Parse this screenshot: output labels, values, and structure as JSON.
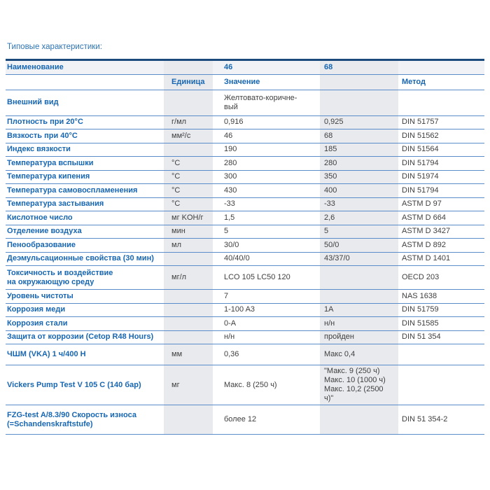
{
  "page": {
    "title": "Типовые характеристики:"
  },
  "colors": {
    "label_blue": "#1766b2",
    "title_blue": "#2d74b5",
    "top_border_navy": "#1b4a7d",
    "row_separator_blue": "#5a8cc9",
    "column_stripe_gray": "#e8eaee",
    "header_row_bg": "#f0f2f5",
    "value_text": "#3f3f3f"
  },
  "table": {
    "header_row1": {
      "name": "Наименование",
      "grade_a": "46",
      "grade_b": "68"
    },
    "header_row2": {
      "unit": "Единица",
      "value": "Значение",
      "method": "Метод"
    },
    "rows": [
      {
        "name": "Внешний вид",
        "unit": "",
        "v46": "Желтовато-коричне-\nвый",
        "v68": "",
        "method": ""
      },
      {
        "name": "Плотность при 20°C",
        "unit": "г/мл",
        "v46": "0,916",
        "v68": "0,925",
        "method": "DIN 51757"
      },
      {
        "name": "Вязкость при 40°C",
        "unit": "мм²/с",
        "v46": "46",
        "v68": "68",
        "method": "DIN 51562"
      },
      {
        "name": "Индекс вязкости",
        "unit": "",
        "v46": "190",
        "v68": "185",
        "method": "DIN 51564"
      },
      {
        "name": "Температура вспышки",
        "unit": "°C",
        "v46": "280",
        "v68": "280",
        "method": "DIN 51794"
      },
      {
        "name": "Температура кипения",
        "unit": "°C",
        "v46": "300",
        "v68": "350",
        "method": "DIN 51974"
      },
      {
        "name": "Температура самовоспламенения",
        "unit": "°C",
        "v46": "430",
        "v68": "400",
        "method": "DIN 51794"
      },
      {
        "name": "Температура застывания",
        "unit": "°C",
        "v46": "-33",
        "v68": "-33",
        "method": "ASTM D 97"
      },
      {
        "name": "Кислотное число",
        "unit": "мг KOH/г",
        "v46": "1,5",
        "v68": "2,6",
        "method": "ASTM D 664"
      },
      {
        "name": "Отделение воздуха",
        "unit": "мин",
        "v46": "5",
        "v68": "5",
        "method": "ASTM D 3427"
      },
      {
        "name": "Пенообразование",
        "unit": "мл",
        "v46": "30/0",
        "v68": "50/0",
        "method": "ASTM D 892"
      },
      {
        "name": "Деэмульсационные свойства (30 мин)",
        "unit": "",
        "v46": "40/40/0",
        "v68": "43/37/0",
        "method": "ASTM D 1401"
      },
      {
        "name": "Токсичность и воздействие\nна окружающую среду",
        "unit": "мг/л",
        "v46": "LCO 105 LC50 120",
        "v68": "",
        "method": "OECD 203"
      },
      {
        "name": "Уровень чистоты",
        "unit": "",
        "v46": "7",
        "v68": "",
        "method": "NAS 1638"
      },
      {
        "name": "Коррозия меди",
        "unit": "",
        "v46": "1-100 A3",
        "v68": "1A",
        "method": "DIN 51759"
      },
      {
        "name": "Коррозия стали",
        "unit": "",
        "v46": "0-A",
        "v68": "н/н",
        "method": "DIN 51585"
      },
      {
        "name": "Защита от коррозии (Cetop R48 Hours)",
        "unit": "",
        "v46": "н/н",
        "v68": "пройден",
        "method": "DIN 51 354"
      },
      {
        "name": "ЧШМ (VKA) 1 ч/400 Н",
        "unit": "мм",
        "v46": "0,36",
        "v68": "Макс 0,4",
        "method": ""
      },
      {
        "name": "Vickers Pump Test V 105 C (140 бар)",
        "unit": "мг",
        "v46": "Макс. 8 (250 ч)",
        "v68": "\"Макс. 9 (250 ч)\nМакс. 10 (1000 ч)\nМакс. 10,2 (2500\nч)\"",
        "method": ""
      },
      {
        "name": "FZG-test A/8.3/90 Скорость износа\n(=Schandenskraftstufe)",
        "unit": "",
        "v46": "более 12",
        "v68": "",
        "method": "DIN 51 354-2"
      }
    ]
  }
}
